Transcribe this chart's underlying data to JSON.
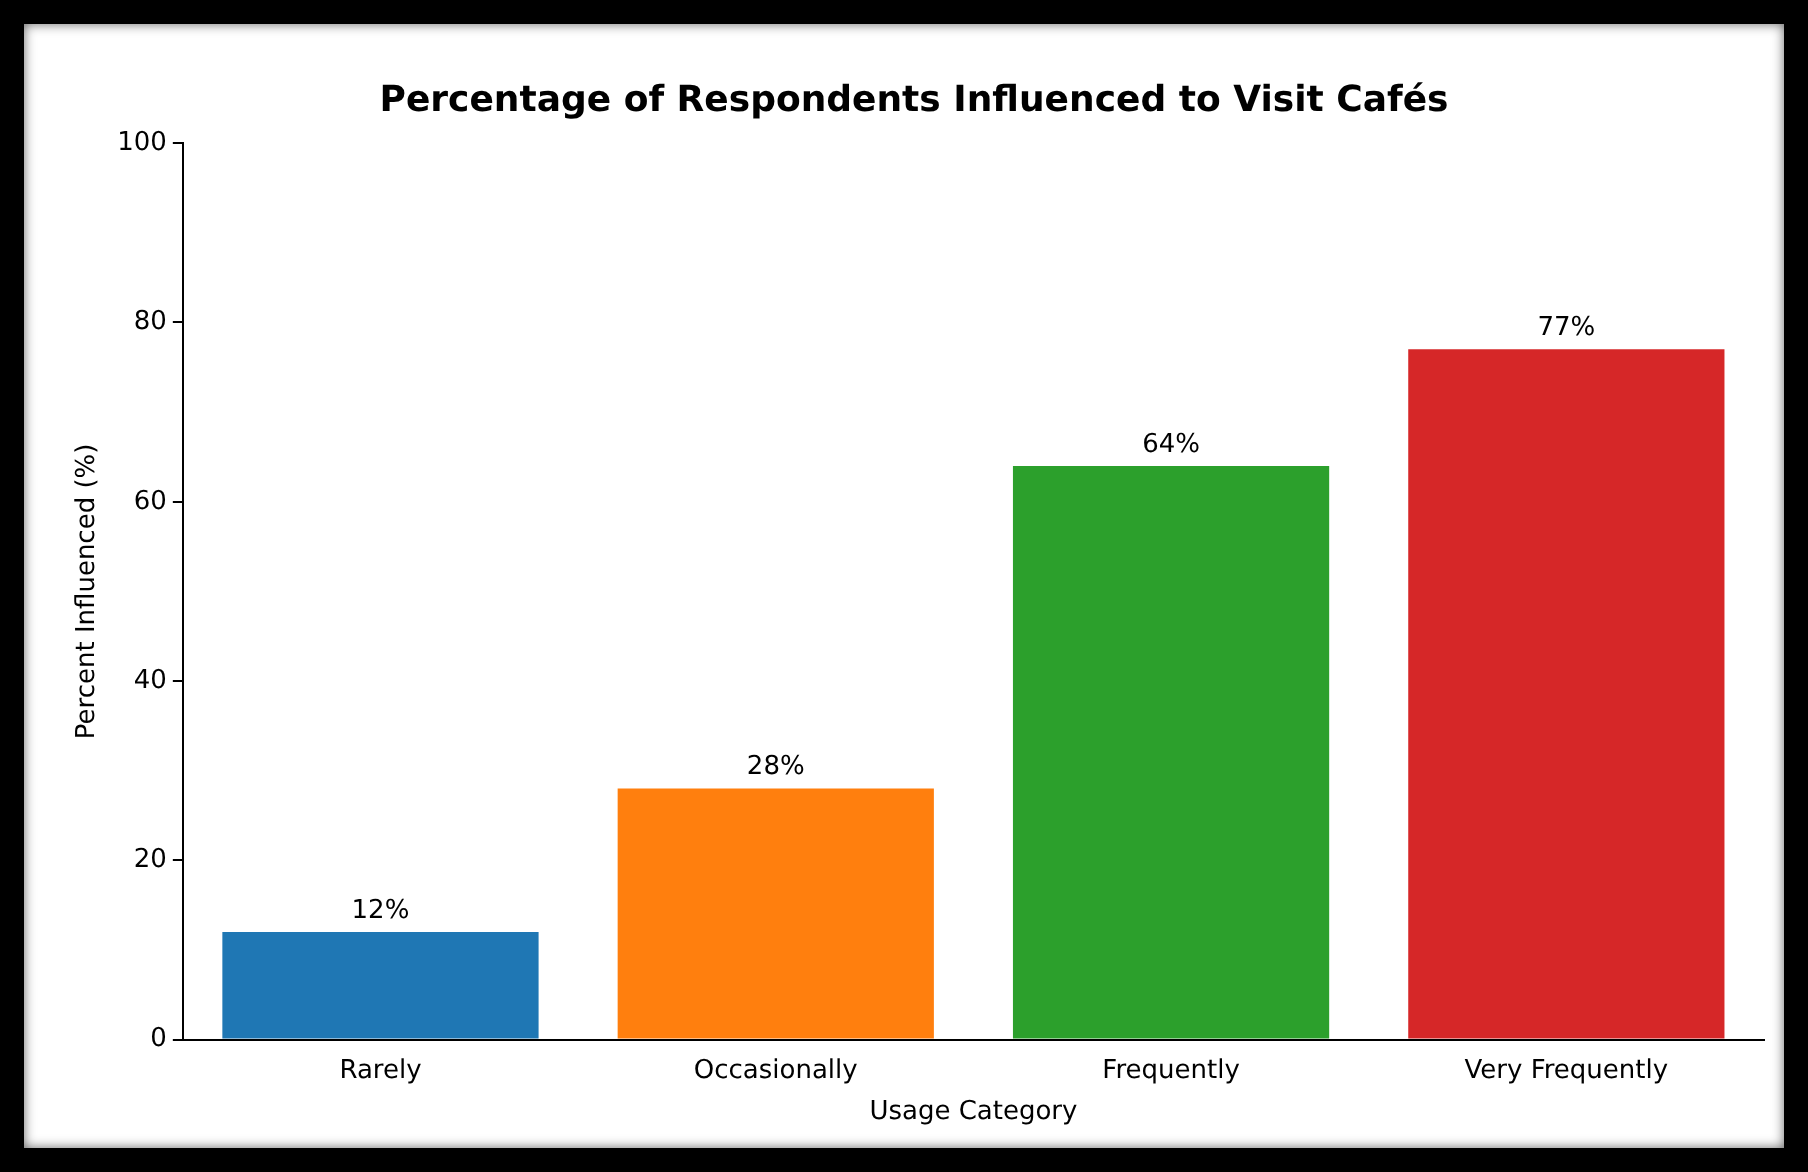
{
  "chart_data": {
    "type": "bar",
    "title": "Percentage of Respondents Influenced to Visit Cafés",
    "xlabel": "Usage Category",
    "ylabel": "Percent Influenced (%)",
    "categories": [
      "Rarely",
      "Occasionally",
      "Frequently",
      "Very Frequently"
    ],
    "values": [
      12,
      28,
      64,
      77
    ],
    "colors": [
      "#1f77b4",
      "#ff7f0e",
      "#2ca02c",
      "#d62728"
    ],
    "value_labels": [
      "12%",
      "28%",
      "64%",
      "77%"
    ],
    "ylim": [
      0,
      100
    ],
    "yticks": [
      0,
      20,
      40,
      60,
      80,
      100
    ],
    "grid": false,
    "legend": false
  }
}
